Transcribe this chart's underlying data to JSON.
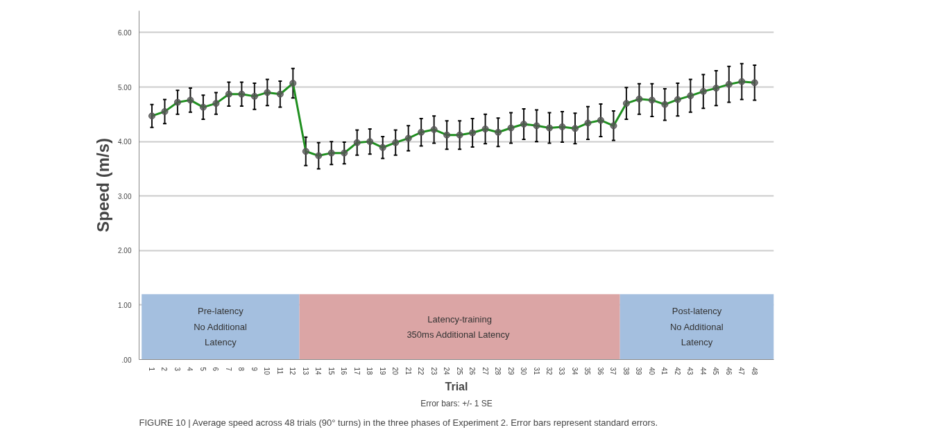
{
  "chart_data": {
    "type": "line",
    "xlabel": "Trial",
    "ylabel": "Speed (m/s)",
    "x": [
      1,
      2,
      3,
      4,
      5,
      6,
      7,
      8,
      9,
      10,
      11,
      12,
      13,
      14,
      15,
      16,
      17,
      18,
      19,
      20,
      21,
      22,
      23,
      24,
      25,
      26,
      27,
      28,
      29,
      30,
      31,
      32,
      33,
      34,
      35,
      36,
      37,
      38,
      39,
      40,
      41,
      42,
      43,
      44,
      45,
      46,
      47,
      48
    ],
    "series": [
      {
        "color": "#1f8f1f",
        "values": [
          4.47,
          4.55,
          4.72,
          4.76,
          4.63,
          4.7,
          4.87,
          4.87,
          4.83,
          4.9,
          4.87,
          5.07,
          3.82,
          3.74,
          3.79,
          3.79,
          3.98,
          4.0,
          3.89,
          3.98,
          4.06,
          4.17,
          4.22,
          4.12,
          4.12,
          4.16,
          4.23,
          4.17,
          4.25,
          4.32,
          4.29,
          4.25,
          4.27,
          4.24,
          4.34,
          4.39,
          4.29,
          4.7,
          4.78,
          4.76,
          4.68,
          4.77,
          4.84,
          4.92,
          4.98,
          5.05,
          5.1,
          5.08
        ],
        "errors": [
          0.21,
          0.22,
          0.22,
          0.22,
          0.22,
          0.2,
          0.22,
          0.22,
          0.24,
          0.24,
          0.24,
          0.27,
          0.26,
          0.24,
          0.21,
          0.2,
          0.23,
          0.23,
          0.2,
          0.23,
          0.23,
          0.25,
          0.25,
          0.26,
          0.26,
          0.26,
          0.27,
          0.26,
          0.28,
          0.28,
          0.29,
          0.28,
          0.28,
          0.28,
          0.3,
          0.3,
          0.27,
          0.29,
          0.28,
          0.3,
          0.29,
          0.3,
          0.3,
          0.31,
          0.32,
          0.33,
          0.33,
          0.32
        ]
      }
    ],
    "xlim": [
      0,
      49.5
    ],
    "xticks": [
      1,
      2,
      3,
      4,
      5,
      6,
      7,
      8,
      9,
      10,
      11,
      12,
      13,
      14,
      15,
      16,
      17,
      18,
      19,
      20,
      21,
      22,
      23,
      24,
      25,
      26,
      27,
      28,
      29,
      30,
      31,
      32,
      33,
      34,
      35,
      36,
      37,
      38,
      39,
      40,
      41,
      42,
      43,
      44,
      45,
      46,
      47,
      48
    ],
    "ylim": [
      0,
      6.4
    ],
    "yticks": [
      {
        "value": 0,
        "label": ".00"
      },
      {
        "value": 1,
        "label": "1.00"
      },
      {
        "value": 2,
        "label": "2.00"
      },
      {
        "value": 3,
        "label": "3.00"
      },
      {
        "value": 4,
        "label": "4.00"
      },
      {
        "value": 5,
        "label": "5.00"
      },
      {
        "value": 6,
        "label": "6.00"
      }
    ],
    "grid": "y",
    "marker": "circle",
    "line_style": "solid",
    "bands": [
      {
        "axis": "x",
        "from": 0.2,
        "to": 12.5,
        "label": "Pre-latency\nNo Additional\nLatency",
        "color": "#a4bfdf"
      },
      {
        "axis": "x",
        "from": 12.5,
        "to": 37.5,
        "label": "Latency-training\n350ms Additional  Latency",
        "color": "#dba5a5"
      },
      {
        "axis": "x",
        "from": 37.5,
        "to": 49.5,
        "label": "Post-latency\nNo Additional\nLatency",
        "color": "#a4bfdf"
      }
    ],
    "annotations": [
      "Error bars: +/- 1 SE",
      "FIGURE 10 | Average speed across 48 trials (90° turns) in the three phases of Experiment 2. Error bars represent standard errors."
    ]
  }
}
